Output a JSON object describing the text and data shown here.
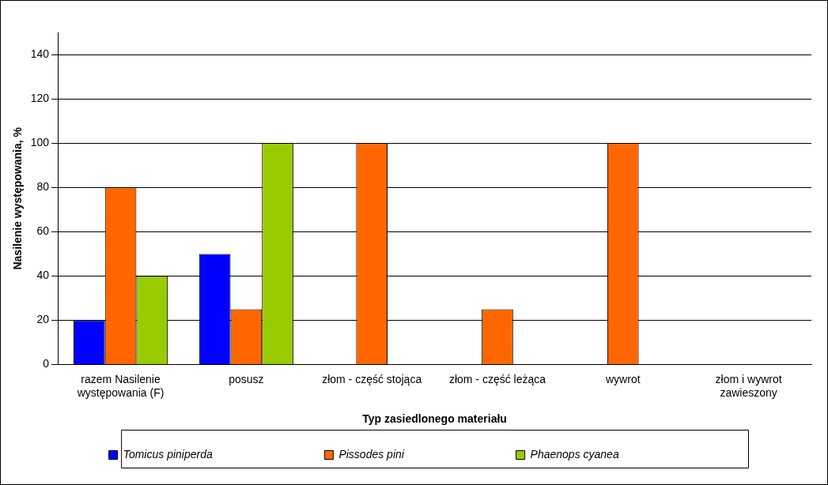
{
  "chart_data": {
    "type": "bar",
    "xlabel": "Typ zasiedlonego materiału",
    "ylabel": "Nasilenie występowania, %",
    "categories": [
      "razem Nasilenie występowania (F)",
      "posusz",
      "złom - część stojąca",
      "złom - część leżąca",
      "wywrot",
      "złom i wywrot zawieszony"
    ],
    "series": [
      {
        "name": "Tomicus piniperda",
        "color": "#0000ff",
        "values": [
          20,
          50,
          0,
          0,
          0,
          0
        ]
      },
      {
        "name": "Pissodes pini",
        "color": "#ff6600",
        "values": [
          80,
          25,
          100,
          25,
          100,
          0
        ]
      },
      {
        "name": "Phaenops cyanea",
        "color": "#99cc00",
        "values": [
          40,
          100,
          0,
          0,
          0,
          0
        ]
      }
    ],
    "ylim": [
      0,
      150
    ],
    "yticks": [
      0,
      20,
      40,
      60,
      80,
      100,
      120,
      140
    ],
    "grid": "y",
    "legend": "bottom"
  }
}
